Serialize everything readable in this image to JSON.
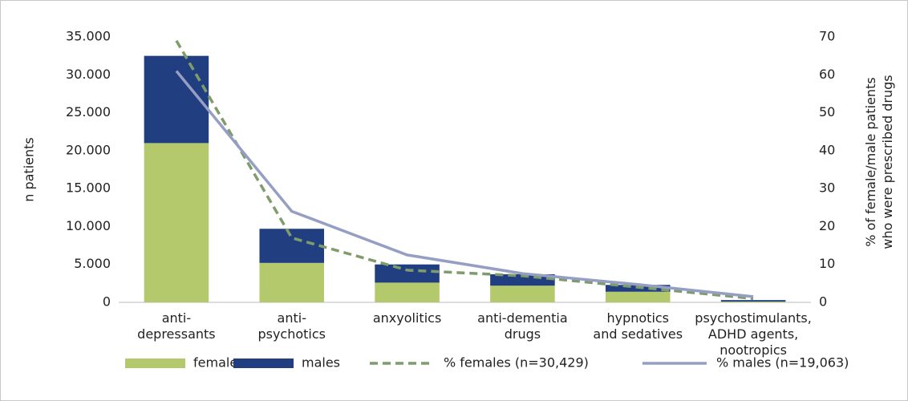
{
  "chart_data": {
    "type": "bar",
    "stacked": true,
    "categories": [
      "anti-\ndepressants",
      "anti-\npsychotics",
      "anxyolitics",
      "anti-dementia\ndrugs",
      "hypnotics\nand sedatives",
      "psychostimulants,\nADHD agents,\nnootropics"
    ],
    "ylabel": "n patients",
    "y2label": "% of female/male patients\nwho were prescribed drugs",
    "ylim": [
      0,
      35000
    ],
    "yticks": [
      0,
      {
        "value": 5000,
        "label": "5.000"
      },
      {
        "value": 10000,
        "label": "10.000"
      },
      {
        "value": 15000,
        "label": "15.000"
      },
      {
        "value": 20000,
        "label": "20.000"
      },
      {
        "value": 25000,
        "label": "25.000"
      },
      {
        "value": 30000,
        "label": "30.000"
      },
      {
        "value": 35000,
        "label": "35.000"
      }
    ],
    "y2lim": [
      0,
      70
    ],
    "y2ticks": [
      0,
      10,
      20,
      30,
      40,
      50,
      60,
      70
    ],
    "legend": "bottom",
    "series": [
      {
        "name": "females",
        "type": "bar",
        "color": "#b4c96c",
        "values": [
          21000,
          5200,
          2600,
          2200,
          1400,
          100
        ]
      },
      {
        "name": "males",
        "type": "bar",
        "color": "#213f80",
        "values": [
          11500,
          4500,
          2400,
          1500,
          900,
          200
        ]
      },
      {
        "name": "% females (n=30,429)",
        "type": "line",
        "axis": "y2",
        "dashed": true,
        "color": "#7f9c6b",
        "values": [
          69,
          17,
          8.5,
          7,
          4,
          1
        ]
      },
      {
        "name": "% males (n=19,063)",
        "type": "line",
        "axis": "y2",
        "dashed": false,
        "color": "#959fc4",
        "values": [
          61,
          24,
          12.5,
          7.6,
          4.7,
          1.5
        ]
      }
    ]
  }
}
